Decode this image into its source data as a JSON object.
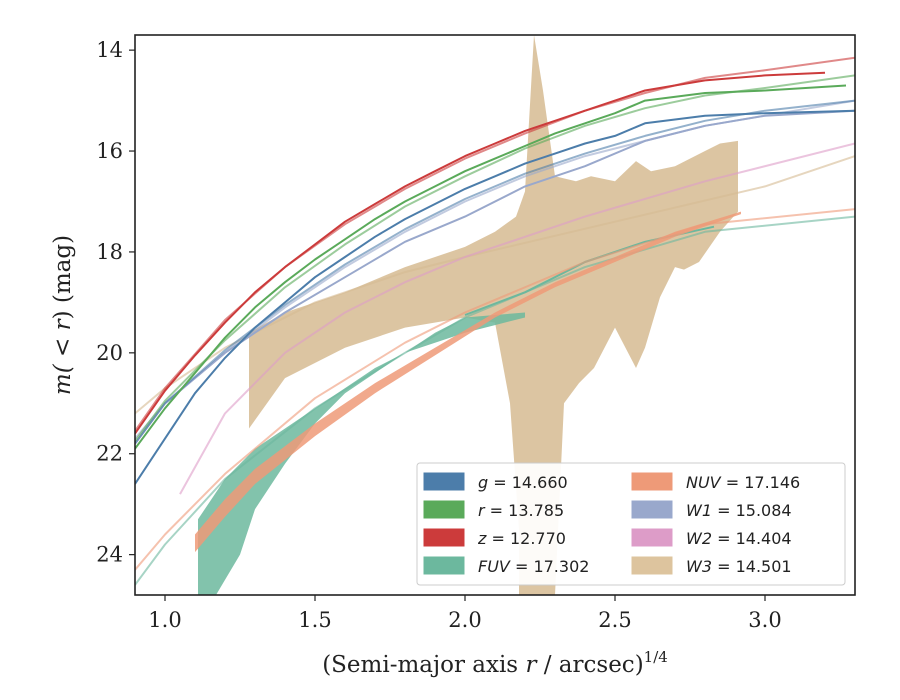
{
  "chart_data": {
    "type": "line",
    "title": "",
    "xlabel_text": "(Semi-major axis ",
    "xlabel_var": "r",
    "xlabel_tail": " / arcsec)",
    "xlabel_sup": "1/4",
    "ylabel_pre": "m(",
    "ylabel_mid": " < ",
    "ylabel_var": "r",
    "ylabel_post": ") (mag)",
    "xlim": [
      0.9,
      3.3
    ],
    "ylim": [
      24.8,
      13.7
    ],
    "y_inverted": true,
    "x_ticks": [
      "1.0",
      "1.5",
      "2.0",
      "2.5",
      "3.0"
    ],
    "y_ticks": [
      "14",
      "16",
      "18",
      "20",
      "22",
      "24"
    ],
    "legend_position": "lower-right",
    "legend": [
      {
        "var": "g",
        "eq": " = 14.660",
        "color": "#4c7daa"
      },
      {
        "var": "r",
        "eq": " = 13.785",
        "color": "#5aaa5a"
      },
      {
        "var": "z",
        "eq": " = 12.770",
        "color": "#cc3b3b"
      },
      {
        "var": "FUV",
        "eq": " = 17.302",
        "color": "#6cb89e"
      },
      {
        "var": "NUV",
        "eq": " = 17.146",
        "color": "#ee9a78"
      },
      {
        "var": "W1",
        "eq": " = 15.084",
        "color": "#99a8cc"
      },
      {
        "var": "W2",
        "eq": " = 14.404",
        "color": "#dd9cc8"
      },
      {
        "var": "W3",
        "eq": " = 14.501",
        "color": "#ddc49e"
      }
    ],
    "series": [
      {
        "id": "W3",
        "color": "#d6bb92",
        "band_upper": [
          [
            1.28,
            19.6
          ],
          [
            1.4,
            19.2
          ],
          [
            1.6,
            18.8
          ],
          [
            1.8,
            18.3
          ],
          [
            2.0,
            17.9
          ],
          [
            2.1,
            17.6
          ],
          [
            2.17,
            17.3
          ],
          [
            2.2,
            16.8
          ],
          [
            2.23,
            13.7
          ],
          [
            2.26,
            14.8
          ],
          [
            2.3,
            16.5
          ],
          [
            2.37,
            16.6
          ],
          [
            2.42,
            16.5
          ],
          [
            2.5,
            16.6
          ],
          [
            2.57,
            16.2
          ],
          [
            2.62,
            16.4
          ],
          [
            2.7,
            16.3
          ],
          [
            2.8,
            16.0
          ],
          [
            2.85,
            15.85
          ],
          [
            2.91,
            15.8
          ],
          [
            2.91,
            17.2
          ]
        ],
        "band_lower": [
          [
            1.28,
            21.5
          ],
          [
            1.4,
            20.5
          ],
          [
            1.6,
            19.9
          ],
          [
            1.8,
            19.5
          ],
          [
            2.0,
            19.3
          ],
          [
            2.1,
            19.4
          ],
          [
            2.15,
            21.0
          ],
          [
            2.18,
            23.5
          ],
          [
            2.18,
            24.8
          ],
          [
            2.3,
            24.8
          ],
          [
            2.33,
            21.0
          ],
          [
            2.38,
            20.6
          ],
          [
            2.43,
            20.3
          ],
          [
            2.5,
            19.5
          ],
          [
            2.57,
            20.3
          ],
          [
            2.6,
            19.9
          ],
          [
            2.65,
            18.9
          ],
          [
            2.7,
            18.3
          ],
          [
            2.73,
            18.35
          ],
          [
            2.78,
            18.2
          ],
          [
            2.85,
            17.6
          ],
          [
            2.91,
            17.2
          ]
        ],
        "model": [
          [
            0.9,
            21.2
          ],
          [
            1.0,
            20.7
          ],
          [
            1.2,
            19.9
          ],
          [
            1.5,
            19.0
          ],
          [
            1.8,
            18.4
          ],
          [
            2.0,
            18.1
          ],
          [
            2.5,
            17.4
          ],
          [
            3.0,
            16.7
          ],
          [
            3.3,
            16.1
          ]
        ]
      },
      {
        "id": "W2",
        "color": "#dd9cc8",
        "model": [
          [
            1.05,
            22.8
          ],
          [
            1.2,
            21.2
          ],
          [
            1.4,
            20.0
          ],
          [
            1.6,
            19.2
          ],
          [
            1.8,
            18.6
          ],
          [
            2.0,
            18.1
          ],
          [
            2.4,
            17.3
          ],
          [
            2.8,
            16.6
          ],
          [
            3.3,
            15.85
          ]
        ]
      },
      {
        "id": "FUV",
        "color": "#6cb89e",
        "band_upper": [
          [
            1.11,
            23.3
          ],
          [
            1.2,
            22.5
          ],
          [
            1.3,
            21.9
          ],
          [
            1.5,
            21.1
          ],
          [
            1.7,
            20.3
          ],
          [
            1.8,
            20.0
          ],
          [
            1.9,
            19.6
          ],
          [
            2.0,
            19.3
          ],
          [
            2.1,
            19.25
          ],
          [
            2.2,
            19.2
          ]
        ],
        "band_lower": [
          [
            1.11,
            24.8
          ],
          [
            1.17,
            24.8
          ],
          [
            1.25,
            24.0
          ],
          [
            1.3,
            23.1
          ],
          [
            1.4,
            22.2
          ],
          [
            1.5,
            21.4
          ],
          [
            1.6,
            20.8
          ],
          [
            1.7,
            20.4
          ],
          [
            1.8,
            20.0
          ],
          [
            1.9,
            19.8
          ],
          [
            2.0,
            19.6
          ],
          [
            2.1,
            19.45
          ],
          [
            2.2,
            19.3
          ]
        ],
        "data_line": [
          [
            2.0,
            19.25
          ],
          [
            2.2,
            18.8
          ],
          [
            2.4,
            18.2
          ],
          [
            2.6,
            17.8
          ],
          [
            2.83,
            17.5
          ]
        ],
        "model": [
          [
            0.9,
            24.6
          ],
          [
            1.0,
            23.8
          ],
          [
            1.2,
            22.5
          ],
          [
            1.5,
            21.1
          ],
          [
            1.8,
            20.0
          ],
          [
            2.0,
            19.3
          ],
          [
            2.4,
            18.3
          ],
          [
            2.8,
            17.6
          ],
          [
            3.3,
            17.3
          ]
        ]
      },
      {
        "id": "NUV",
        "color": "#ee9a78",
        "band_upper": [
          [
            1.1,
            23.6
          ],
          [
            1.2,
            22.9
          ],
          [
            1.3,
            22.3
          ],
          [
            1.5,
            21.4
          ],
          [
            1.7,
            20.6
          ],
          [
            1.9,
            19.9
          ],
          [
            2.1,
            19.2
          ],
          [
            2.3,
            18.6
          ],
          [
            2.5,
            18.1
          ],
          [
            2.7,
            17.6
          ],
          [
            2.92,
            17.2
          ]
        ],
        "band_lower": [
          [
            1.1,
            23.95
          ],
          [
            1.2,
            23.25
          ],
          [
            1.3,
            22.6
          ],
          [
            1.5,
            21.65
          ],
          [
            1.7,
            20.8
          ],
          [
            1.9,
            20.05
          ],
          [
            2.1,
            19.3
          ],
          [
            2.3,
            18.7
          ],
          [
            2.5,
            18.2
          ],
          [
            2.7,
            17.7
          ],
          [
            2.92,
            17.25
          ]
        ],
        "model": [
          [
            0.9,
            24.3
          ],
          [
            1.0,
            23.6
          ],
          [
            1.2,
            22.4
          ],
          [
            1.5,
            20.9
          ],
          [
            1.8,
            19.8
          ],
          [
            2.0,
            19.2
          ],
          [
            2.4,
            18.2
          ],
          [
            2.8,
            17.45
          ],
          [
            3.3,
            17.15
          ]
        ]
      },
      {
        "id": "W1",
        "color": "#99a8cc",
        "data_line": [
          [
            0.9,
            21.8
          ],
          [
            1.0,
            21.0
          ],
          [
            1.2,
            20.0
          ],
          [
            1.4,
            19.2
          ],
          [
            1.6,
            18.5
          ],
          [
            1.8,
            17.8
          ],
          [
            2.0,
            17.3
          ],
          [
            2.2,
            16.7
          ],
          [
            2.4,
            16.3
          ],
          [
            2.6,
            15.8
          ],
          [
            2.8,
            15.5
          ],
          [
            3.0,
            15.3
          ],
          [
            3.3,
            15.2
          ]
        ],
        "model": [
          [
            0.9,
            21.7
          ],
          [
            1.0,
            21.0
          ],
          [
            1.2,
            20.0
          ],
          [
            1.4,
            19.1
          ],
          [
            1.6,
            18.3
          ],
          [
            1.8,
            17.6
          ],
          [
            2.0,
            17.0
          ],
          [
            2.2,
            16.5
          ],
          [
            2.4,
            16.1
          ],
          [
            2.6,
            15.8
          ],
          [
            2.8,
            15.5
          ],
          [
            3.0,
            15.3
          ],
          [
            3.3,
            15.0
          ]
        ]
      },
      {
        "id": "g",
        "color": "#4c7daa",
        "data_line": [
          [
            0.9,
            22.6
          ],
          [
            1.0,
            21.7
          ],
          [
            1.1,
            20.8
          ],
          [
            1.2,
            20.1
          ],
          [
            1.3,
            19.5
          ],
          [
            1.4,
            19.0
          ],
          [
            1.5,
            18.5
          ],
          [
            1.6,
            18.1
          ],
          [
            1.7,
            17.7
          ],
          [
            1.8,
            17.35
          ],
          [
            1.9,
            17.05
          ],
          [
            2.0,
            16.75
          ],
          [
            2.1,
            16.5
          ],
          [
            2.2,
            16.25
          ],
          [
            2.3,
            16.05
          ],
          [
            2.4,
            15.85
          ],
          [
            2.5,
            15.7
          ],
          [
            2.6,
            15.45
          ],
          [
            2.8,
            15.3
          ],
          [
            3.0,
            15.25
          ],
          [
            3.3,
            15.2
          ]
        ],
        "model": [
          [
            0.9,
            21.8
          ],
          [
            1.0,
            21.0
          ],
          [
            1.2,
            19.95
          ],
          [
            1.4,
            19.05
          ],
          [
            1.6,
            18.25
          ],
          [
            1.8,
            17.55
          ],
          [
            2.0,
            16.95
          ],
          [
            2.2,
            16.45
          ],
          [
            2.4,
            16.05
          ],
          [
            2.6,
            15.7
          ],
          [
            2.8,
            15.4
          ],
          [
            3.0,
            15.2
          ],
          [
            3.3,
            15.0
          ]
        ]
      },
      {
        "id": "r",
        "color": "#5aaa5a",
        "data_line": [
          [
            0.9,
            21.9
          ],
          [
            1.0,
            21.1
          ],
          [
            1.1,
            20.4
          ],
          [
            1.2,
            19.7
          ],
          [
            1.3,
            19.1
          ],
          [
            1.4,
            18.6
          ],
          [
            1.5,
            18.15
          ],
          [
            1.6,
            17.75
          ],
          [
            1.7,
            17.35
          ],
          [
            1.8,
            17.0
          ],
          [
            1.9,
            16.7
          ],
          [
            2.0,
            16.4
          ],
          [
            2.1,
            16.15
          ],
          [
            2.2,
            15.9
          ],
          [
            2.3,
            15.65
          ],
          [
            2.4,
            15.45
          ],
          [
            2.5,
            15.25
          ],
          [
            2.6,
            15.0
          ],
          [
            2.8,
            14.85
          ],
          [
            3.0,
            14.8
          ],
          [
            3.27,
            14.7
          ]
        ],
        "model": [
          [
            0.9,
            21.75
          ],
          [
            1.0,
            20.95
          ],
          [
            1.2,
            19.75
          ],
          [
            1.4,
            18.7
          ],
          [
            1.6,
            17.85
          ],
          [
            1.8,
            17.1
          ],
          [
            2.0,
            16.5
          ],
          [
            2.2,
            15.95
          ],
          [
            2.4,
            15.5
          ],
          [
            2.6,
            15.15
          ],
          [
            2.8,
            14.9
          ],
          [
            3.0,
            14.75
          ],
          [
            3.3,
            14.5
          ]
        ]
      },
      {
        "id": "z",
        "color": "#cc3b3b",
        "data_line": [
          [
            0.9,
            21.6
          ],
          [
            1.0,
            20.75
          ],
          [
            1.1,
            20.05
          ],
          [
            1.2,
            19.4
          ],
          [
            1.3,
            18.8
          ],
          [
            1.4,
            18.3
          ],
          [
            1.5,
            17.85
          ],
          [
            1.6,
            17.4
          ],
          [
            1.7,
            17.05
          ],
          [
            1.8,
            16.7
          ],
          [
            1.9,
            16.4
          ],
          [
            2.0,
            16.1
          ],
          [
            2.1,
            15.85
          ],
          [
            2.2,
            15.6
          ],
          [
            2.3,
            15.4
          ],
          [
            2.4,
            15.2
          ],
          [
            2.5,
            15.0
          ],
          [
            2.6,
            14.8
          ],
          [
            2.8,
            14.6
          ],
          [
            3.0,
            14.5
          ],
          [
            3.2,
            14.45
          ]
        ],
        "model": [
          [
            0.9,
            21.55
          ],
          [
            1.0,
            20.7
          ],
          [
            1.2,
            19.35
          ],
          [
            1.4,
            18.3
          ],
          [
            1.6,
            17.45
          ],
          [
            1.8,
            16.75
          ],
          [
            2.0,
            16.15
          ],
          [
            2.2,
            15.65
          ],
          [
            2.4,
            15.2
          ],
          [
            2.6,
            14.85
          ],
          [
            2.8,
            14.55
          ],
          [
            3.0,
            14.4
          ],
          [
            3.3,
            14.15
          ]
        ]
      }
    ]
  }
}
